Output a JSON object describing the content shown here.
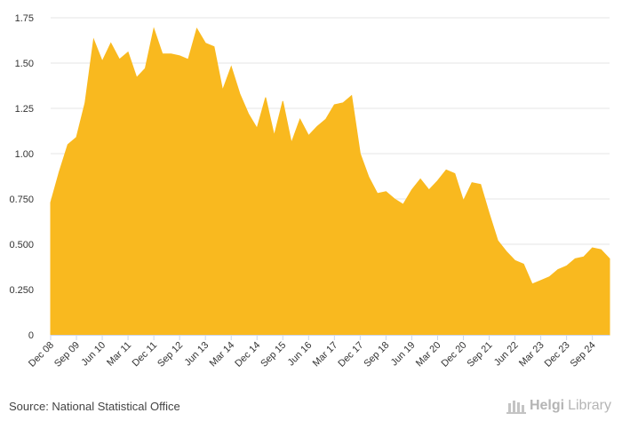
{
  "chart_data": {
    "type": "area",
    "title": "",
    "xlabel": "",
    "ylabel": "",
    "ylim": [
      0,
      1.75
    ],
    "yticks": [
      "0",
      "0.250",
      "0.500",
      "0.750",
      "1.00",
      "1.25",
      "1.50",
      "1.75"
    ],
    "ytick_values": [
      0,
      0.25,
      0.5,
      0.75,
      1.0,
      1.25,
      1.5,
      1.75
    ],
    "xtick_labels": [
      "Dec 08",
      "Sep 09",
      "Jun 10",
      "Mar 11",
      "Dec 11",
      "Sep 12",
      "Jun 13",
      "Mar 14",
      "Dec 14",
      "Sep 15",
      "Jun 16",
      "Mar 17",
      "Dec 17",
      "Sep 18",
      "Jun 19",
      "Mar 20",
      "Dec 20",
      "Sep 21",
      "Jun 22",
      "Mar 23",
      "Dec 23",
      "Sep 24"
    ],
    "xtick_index_step": 3,
    "series": [
      {
        "name": "value",
        "color": "#f9b91f",
        "values": [
          0.73,
          0.9,
          1.05,
          1.09,
          1.28,
          1.63,
          1.51,
          1.61,
          1.52,
          1.56,
          1.42,
          1.47,
          1.69,
          1.55,
          1.55,
          1.54,
          1.52,
          1.69,
          1.61,
          1.59,
          1.35,
          1.48,
          1.33,
          1.22,
          1.14,
          1.31,
          1.1,
          1.29,
          1.06,
          1.19,
          1.1,
          1.15,
          1.19,
          1.27,
          1.28,
          1.32,
          1.0,
          0.87,
          0.78,
          0.79,
          0.75,
          0.72,
          0.8,
          0.86,
          0.8,
          0.85,
          0.91,
          0.89,
          0.74,
          0.84,
          0.83,
          0.67,
          0.52,
          0.46,
          0.41,
          0.39,
          0.28,
          0.3,
          0.32,
          0.36,
          0.38,
          0.42,
          0.43,
          0.48,
          0.47,
          0.42
        ]
      }
    ]
  },
  "footer": {
    "source": "Source: National Statistical Office",
    "brand_bold": "Helgi",
    "brand_light": "Library"
  },
  "colors": {
    "area": "#f9b91f",
    "grid": "#e6e6e6",
    "axis": "#ccd6eb"
  }
}
